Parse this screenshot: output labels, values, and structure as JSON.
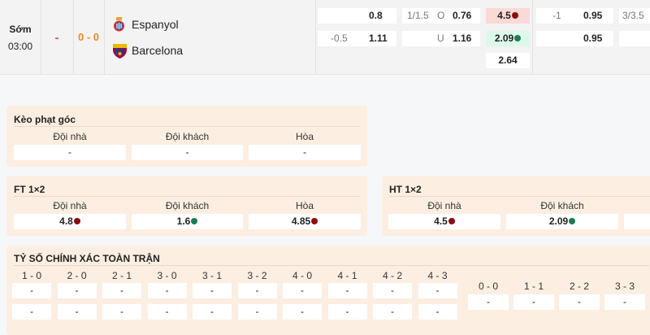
{
  "match": {
    "status": "Sớm",
    "time": "03:00",
    "live": "-",
    "score": "0 - 0",
    "home": {
      "name": "Espanyol",
      "logo": "espanyol-crest"
    },
    "away": {
      "name": "Barcelona",
      "logo": "barcelona-crest"
    }
  },
  "odds": {
    "handicap": {
      "row1": {
        "line": "",
        "value": "0.8"
      },
      "row2": {
        "line": "-0.5",
        "value": "1.11"
      }
    },
    "overunder": {
      "row1": {
        "line": "1/1.5",
        "side": "O",
        "value": "0.76"
      },
      "row2": {
        "line": "",
        "side": "U",
        "value": "1.16"
      }
    },
    "x12": {
      "home": "4.5",
      "away": "2.09",
      "draw": "2.64"
    },
    "handicap2": {
      "row1": {
        "line": "-1",
        "value": "0.95"
      },
      "row2": {
        "line": "",
        "value": "0.95"
      }
    },
    "overunder2": {
      "row1": {
        "line": "3/3.5"
      }
    }
  },
  "colors": {
    "down": "#8b0d0d",
    "up": "#1f7a55",
    "card": "#fdeee2"
  },
  "corner": {
    "title": "Kèo phạt góc",
    "labels": [
      "Đội nhà",
      "Đội khách",
      "Hòa"
    ],
    "values": [
      "-",
      "-",
      "-"
    ]
  },
  "ft": {
    "title": "FT 1×2",
    "labels": [
      "Đội nhà",
      "Đội khách",
      "Hòa"
    ],
    "values": [
      "4.8",
      "1.6",
      "4.85"
    ],
    "trend": [
      "down",
      "up",
      "down"
    ]
  },
  "ht": {
    "title": "HT 1×2",
    "labels": [
      "Đội nhà",
      "Đội khách"
    ],
    "values": [
      "4.5",
      "2.09",
      ""
    ],
    "trend": [
      "down",
      "up"
    ]
  },
  "correct": {
    "title": "TỶ SỐ CHÍNH XÁC TOÀN TRẬN",
    "scores": [
      "1 - 0",
      "2 - 0",
      "2 - 1",
      "3 - 0",
      "3 - 1",
      "3 - 2",
      "4 - 0",
      "4 - 1",
      "4 - 2",
      "4 - 3"
    ],
    "home_values": [
      "-",
      "-",
      "-",
      "-",
      "-",
      "-",
      "-",
      "-",
      "-",
      "-"
    ],
    "away_values": [
      "-",
      "-",
      "-",
      "-",
      "-",
      "-",
      "-",
      "-",
      "-",
      "-"
    ],
    "draws": [
      "0 - 0",
      "1 - 1",
      "2 - 2",
      "3 - 3"
    ],
    "draw_values": [
      "-",
      "-",
      "-",
      "-"
    ]
  }
}
